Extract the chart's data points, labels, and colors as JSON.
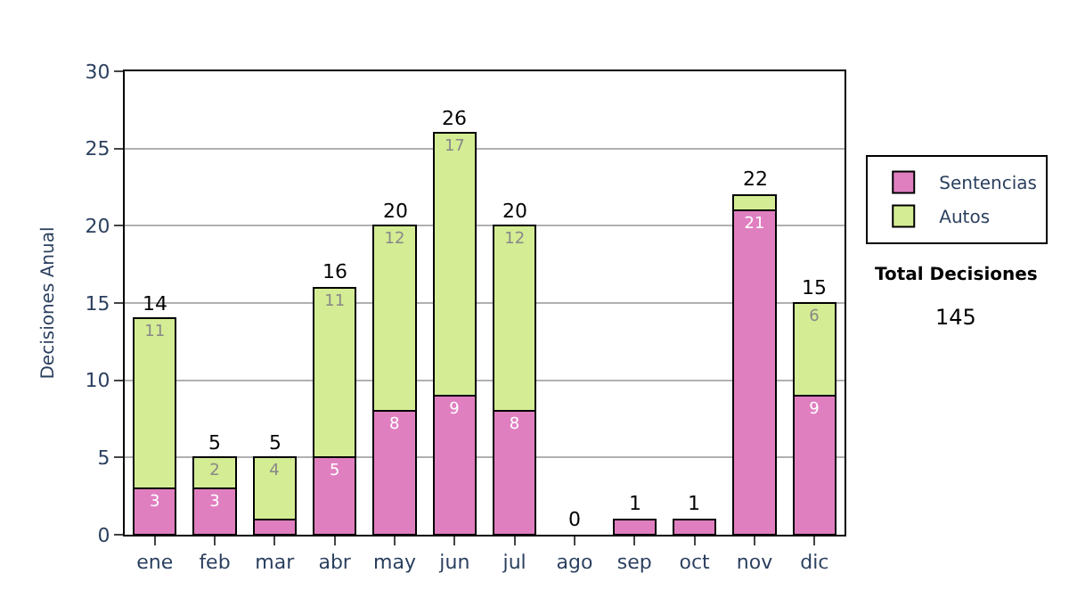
{
  "chart_data": {
    "type": "bar",
    "stacked": true,
    "ylabel": "Decisiones Anual",
    "categories": [
      "ene",
      "feb",
      "mar",
      "abr",
      "may",
      "jun",
      "jul",
      "ago",
      "sep",
      "oct",
      "nov",
      "dic"
    ],
    "series": [
      {
        "name": "Sentencias",
        "color": "#e07fc0",
        "values": [
          3,
          3,
          1,
          5,
          8,
          9,
          8,
          0,
          1,
          1,
          21,
          9
        ],
        "value_labels": [
          "3",
          "3",
          null,
          "5",
          "8",
          "9",
          "8",
          null,
          null,
          null,
          "21",
          "9"
        ]
      },
      {
        "name": "Autos",
        "color": "#d4ec94",
        "values": [
          11,
          2,
          4,
          11,
          12,
          17,
          12,
          0,
          0,
          0,
          1,
          6
        ],
        "value_labels": [
          "11",
          "2",
          "4",
          "11",
          "12",
          "17",
          "12",
          null,
          null,
          null,
          null,
          "6"
        ]
      }
    ],
    "totals": [
      "14",
      "5",
      "5",
      "16",
      "20",
      "26",
      "20",
      "0",
      "1",
      "1",
      "22",
      "15"
    ],
    "ylim": [
      0,
      30
    ],
    "yticks": [
      0,
      5,
      10,
      15,
      20,
      25,
      30
    ],
    "grid": "y",
    "legend": "right",
    "annotations": [
      "Total Decisiones",
      "145"
    ]
  }
}
